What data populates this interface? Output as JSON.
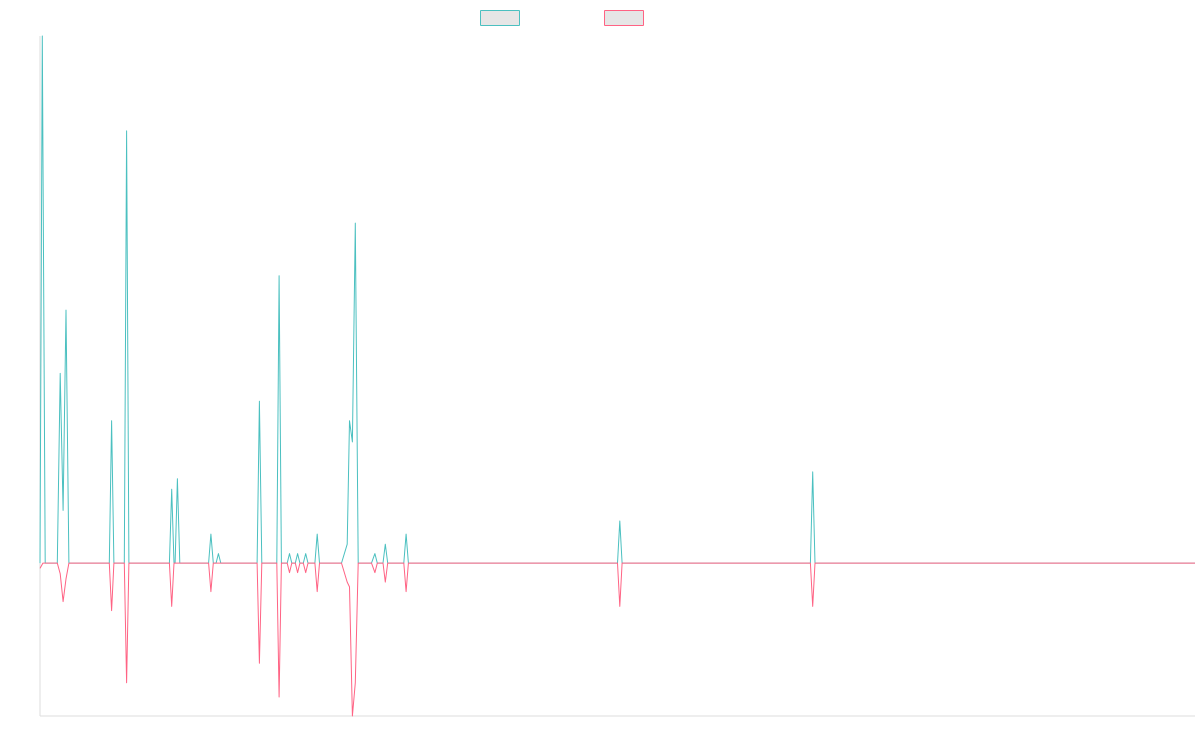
{
  "chart_data": {
    "type": "line",
    "title": "",
    "xlabel": "",
    "ylabel": "",
    "x_range": [
      0,
      200
    ],
    "ylim": [
      -0.29,
      1.0
    ],
    "grid": false,
    "legend_position": "top-center",
    "series": [
      {
        "color": "#4bc0c0",
        "fill": "#e6e6e6",
        "points": [
          [
            0,
            0
          ],
          [
            0.4,
            1.0
          ],
          [
            0.9,
            0
          ],
          [
            3,
            0
          ],
          [
            3.5,
            0.36
          ],
          [
            4,
            0.1
          ],
          [
            4.5,
            0.48
          ],
          [
            5,
            0
          ],
          [
            12,
            0
          ],
          [
            12.4,
            0.27
          ],
          [
            12.8,
            0
          ],
          [
            14.6,
            0
          ],
          [
            15,
            0.82
          ],
          [
            15.4,
            0
          ],
          [
            22.4,
            0
          ],
          [
            22.8,
            0.14
          ],
          [
            23.2,
            0
          ],
          [
            23.4,
            0
          ],
          [
            23.8,
            0.16
          ],
          [
            24.2,
            0
          ],
          [
            29.2,
            0
          ],
          [
            29.6,
            0.055
          ],
          [
            30,
            0
          ],
          [
            30.5,
            0
          ],
          [
            30.9,
            0.018
          ],
          [
            31.3,
            0
          ],
          [
            37.6,
            0
          ],
          [
            38,
            0.307
          ],
          [
            38.4,
            0
          ],
          [
            41,
            0
          ],
          [
            41.4,
            0.545
          ],
          [
            41.8,
            0
          ],
          [
            42.8,
            0
          ],
          [
            43.2,
            0.018
          ],
          [
            43.6,
            0
          ],
          [
            44.2,
            0
          ],
          [
            44.6,
            0.018
          ],
          [
            45,
            0
          ],
          [
            45.6,
            0
          ],
          [
            46,
            0.018
          ],
          [
            46.4,
            0
          ],
          [
            47.6,
            0
          ],
          [
            48,
            0.055
          ],
          [
            48.4,
            0
          ],
          [
            52.2,
            0
          ],
          [
            53.2,
            0.036
          ],
          [
            53.6,
            0.27
          ],
          [
            54.1,
            0.23
          ],
          [
            54.6,
            0.645
          ],
          [
            55.1,
            0
          ],
          [
            57.4,
            0
          ],
          [
            58,
            0.018
          ],
          [
            58.4,
            0
          ],
          [
            59.4,
            0
          ],
          [
            59.8,
            0.036
          ],
          [
            60.2,
            0
          ],
          [
            63,
            0
          ],
          [
            63.4,
            0.055
          ],
          [
            63.8,
            0
          ],
          [
            100,
            0
          ],
          [
            100.4,
            0.08
          ],
          [
            100.8,
            0
          ],
          [
            133.4,
            0
          ],
          [
            133.8,
            0.173
          ],
          [
            134.2,
            0
          ],
          [
            200,
            0
          ]
        ]
      },
      {
        "color": "#ff6384",
        "fill": "#e6e6e6",
        "points": [
          [
            0,
            -0.01
          ],
          [
            0.5,
            0
          ],
          [
            3,
            0
          ],
          [
            3.5,
            -0.02
          ],
          [
            4,
            -0.073
          ],
          [
            4.5,
            -0.03
          ],
          [
            5,
            0
          ],
          [
            12,
            0
          ],
          [
            12.4,
            -0.09
          ],
          [
            12.8,
            0
          ],
          [
            14.6,
            0
          ],
          [
            15,
            -0.227
          ],
          [
            15.4,
            0
          ],
          [
            22.4,
            0
          ],
          [
            22.8,
            -0.082
          ],
          [
            23.2,
            0
          ],
          [
            29.2,
            0
          ],
          [
            29.6,
            -0.054
          ],
          [
            30,
            0
          ],
          [
            37.6,
            0
          ],
          [
            38,
            -0.19
          ],
          [
            38.4,
            0
          ],
          [
            41,
            0
          ],
          [
            41.4,
            -0.254
          ],
          [
            41.8,
            0
          ],
          [
            42.8,
            0
          ],
          [
            43.2,
            -0.018
          ],
          [
            43.6,
            0
          ],
          [
            44.2,
            0
          ],
          [
            44.6,
            -0.018
          ],
          [
            45,
            0
          ],
          [
            45.6,
            0
          ],
          [
            46,
            -0.018
          ],
          [
            46.4,
            0
          ],
          [
            47.6,
            0
          ],
          [
            48,
            -0.054
          ],
          [
            48.4,
            0
          ],
          [
            52.2,
            0
          ],
          [
            53.2,
            -0.036
          ],
          [
            53.6,
            -0.045
          ],
          [
            54.1,
            -0.29
          ],
          [
            54.6,
            -0.227
          ],
          [
            55.1,
            0
          ],
          [
            57.4,
            0
          ],
          [
            58,
            -0.018
          ],
          [
            58.4,
            0
          ],
          [
            59.4,
            0
          ],
          [
            59.8,
            -0.036
          ],
          [
            60.2,
            0
          ],
          [
            63,
            0
          ],
          [
            63.4,
            -0.054
          ],
          [
            63.8,
            0
          ],
          [
            100,
            0
          ],
          [
            100.4,
            -0.082
          ],
          [
            100.8,
            0
          ],
          [
            133.4,
            0
          ],
          [
            133.8,
            -0.082
          ],
          [
            134.2,
            0
          ],
          [
            200,
            0
          ]
        ]
      }
    ]
  }
}
